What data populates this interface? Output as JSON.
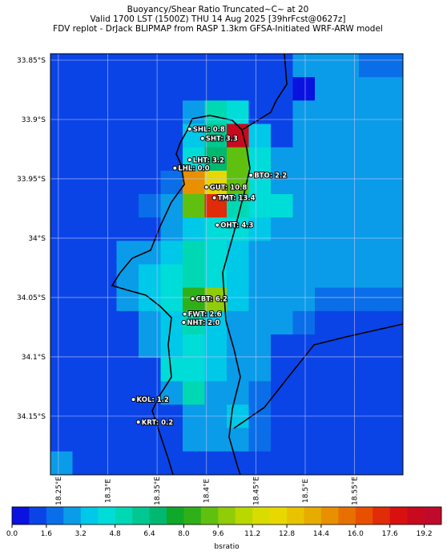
{
  "chart_data": {
    "type": "heatmap",
    "title_lines": [
      "Buoyancy/Shear Ratio Truncated~C~    at 20",
      "Valid 1700 LST (1500Z) THU 14 Aug 2025 [39hrFcst@0627z]",
      "FDV replot - DrJack BLIPMAP from RASP 1.3km GFSA-Initiated WRF-ARW model"
    ],
    "lon_lim": [
      18.242,
      18.599
    ],
    "lat_lim": [
      33.8446,
      34.1994
    ],
    "lat_ticks": [
      {
        "value": 33.85,
        "label": "33.85°S"
      },
      {
        "value": 33.9,
        "label": "33.9°S"
      },
      {
        "value": 33.95,
        "label": "33.95°S"
      },
      {
        "value": 34,
        "label": "34°S"
      },
      {
        "value": 34.05,
        "label": "34.05°S"
      },
      {
        "value": 34.1,
        "label": "34.1°S"
      },
      {
        "value": 34.15,
        "label": "34.15°S"
      }
    ],
    "lon_ticks": [
      {
        "value": 18.25,
        "label": "18.25°E"
      },
      {
        "value": 18.3,
        "label": "18.3°E"
      },
      {
        "value": 18.35,
        "label": "18.35°E"
      },
      {
        "value": 18.4,
        "label": "18.4°E"
      },
      {
        "value": 18.45,
        "label": "18.45°E"
      },
      {
        "value": 18.5,
        "label": "18.5°E"
      },
      {
        "value": 18.55,
        "label": "18.55°E"
      }
    ],
    "grid_values": [
      [
        1.2,
        1.2,
        1.2,
        1.2,
        1.2,
        1.2,
        1.2,
        1.2,
        1.2,
        1.2,
        1.2,
        2.4,
        2.4,
        2.4,
        2.0,
        2.0
      ],
      [
        1.2,
        1.2,
        1.2,
        1.2,
        1.2,
        1.2,
        1.2,
        1.2,
        1.2,
        1.2,
        1.2,
        0.6,
        2.4,
        2.4,
        2.4,
        2.4
      ],
      [
        1.2,
        1.2,
        1.2,
        1.2,
        1.2,
        1.2,
        2.8,
        5.0,
        4.0,
        1.2,
        1.2,
        2.4,
        2.4,
        2.4,
        2.4,
        2.4
      ],
      [
        1.2,
        1.2,
        1.2,
        1.2,
        1.2,
        1.2,
        3.2,
        6.0,
        19.0,
        3.6,
        1.2,
        2.4,
        2.4,
        2.4,
        2.4,
        2.4
      ],
      [
        1.2,
        1.2,
        1.2,
        1.2,
        1.2,
        1.2,
        4.0,
        6.4,
        8.8,
        4.0,
        2.4,
        2.4,
        2.4,
        2.4,
        2.4,
        2.4
      ],
      [
        1.2,
        1.2,
        1.2,
        1.2,
        1.2,
        1.6,
        14.5,
        12.0,
        9.0,
        4.0,
        2.4,
        2.4,
        2.4,
        2.4,
        2.4,
        2.4
      ],
      [
        1.2,
        1.2,
        1.2,
        1.2,
        1.6,
        2.4,
        9.0,
        17.0,
        4.8,
        4.0,
        4.0,
        2.4,
        2.4,
        2.4,
        2.4,
        2.4
      ],
      [
        1.2,
        1.2,
        1.2,
        1.2,
        1.2,
        2.4,
        3.6,
        4.0,
        4.0,
        3.2,
        2.4,
        2.4,
        2.4,
        2.4,
        2.4,
        2.4
      ],
      [
        1.2,
        1.2,
        1.2,
        2.4,
        2.4,
        3.2,
        4.8,
        4.0,
        3.2,
        2.4,
        2.4,
        2.4,
        2.4,
        2.4,
        2.4,
        2.4
      ],
      [
        1.2,
        1.2,
        1.2,
        2.4,
        3.2,
        4.0,
        4.8,
        4.0,
        3.2,
        2.4,
        2.4,
        2.4,
        2.4,
        2.4,
        2.4,
        2.4
      ],
      [
        1.2,
        1.2,
        1.2,
        2.4,
        3.2,
        4.0,
        8.4,
        9.6,
        3.2,
        2.4,
        2.4,
        2.4,
        1.6,
        1.6,
        1.6,
        1.6
      ],
      [
        1.2,
        1.2,
        1.2,
        1.2,
        2.4,
        3.2,
        4.8,
        3.2,
        2.4,
        2.4,
        2.4,
        1.6,
        1.2,
        1.2,
        1.2,
        1.2
      ],
      [
        1.2,
        1.2,
        1.2,
        1.2,
        2.4,
        3.6,
        4.0,
        3.2,
        2.4,
        2.4,
        1.2,
        1.2,
        1.2,
        1.2,
        1.2,
        1.2
      ],
      [
        1.2,
        1.2,
        1.2,
        1.2,
        1.2,
        4.4,
        4.4,
        3.6,
        2.4,
        2.4,
        1.2,
        1.2,
        1.2,
        1.2,
        1.2,
        1.2
      ],
      [
        1.2,
        1.2,
        1.2,
        1.2,
        1.2,
        2.4,
        5.6,
        2.4,
        2.4,
        2.0,
        1.2,
        1.2,
        1.2,
        1.2,
        1.2,
        1.2
      ],
      [
        1.2,
        1.2,
        1.2,
        1.2,
        1.2,
        1.2,
        2.4,
        2.4,
        3.2,
        2.0,
        1.2,
        1.2,
        1.2,
        1.2,
        1.2,
        1.2
      ],
      [
        1.2,
        1.2,
        1.2,
        1.2,
        1.2,
        1.2,
        2.4,
        2.4,
        2.4,
        1.6,
        1.2,
        1.2,
        1.2,
        1.2,
        1.2,
        1.2
      ],
      [
        2.4,
        1.2,
        1.2,
        1.2,
        1.2,
        1.2,
        1.2,
        1.2,
        1.2,
        1.2,
        1.2,
        1.2,
        1.2,
        1.2,
        1.2,
        1.2
      ]
    ],
    "colorbar": {
      "label": "bsratio",
      "clim": [
        0,
        20
      ],
      "colors": [
        "#0a12e0",
        "#0a44e6",
        "#0a6ee8",
        "#0a9ce8",
        "#00c8e8",
        "#00dcd8",
        "#00d8b4",
        "#00c890",
        "#00b870",
        "#10a828",
        "#30b018",
        "#60c010",
        "#90cc08",
        "#b8d800",
        "#d8dc00",
        "#e8d800",
        "#e8c400",
        "#e8ac00",
        "#e89000",
        "#e87000",
        "#e85000",
        "#e02c08",
        "#d81010",
        "#c80a1e",
        "#c00a2c"
      ],
      "ticks": [
        {
          "value": 0,
          "label": "0.0"
        },
        1.6,
        3.2,
        4.8,
        6.4,
        {
          "value": 8,
          "label": "8.0"
        },
        9.6,
        11.2,
        12.8,
        14.4,
        {
          "value": 16,
          "label": "16.0"
        },
        17.6,
        19.2
      ]
    },
    "stations": [
      {
        "label": "SHL: 0.8",
        "lon": 18.383,
        "lat": 33.908
      },
      {
        "label": "SHT: 3.3",
        "lon": 18.396,
        "lat": 33.916
      },
      {
        "label": "LHT: 3.2",
        "lon": 18.383,
        "lat": 33.934
      },
      {
        "label": "LHL: 0.0",
        "lon": 18.368,
        "lat": 33.941
      },
      {
        "label": "BTO: 2.2",
        "lon": 18.445,
        "lat": 33.947
      },
      {
        "label": "GUT: 10.8",
        "lon": 18.4,
        "lat": 33.957
      },
      {
        "label": "TMT: 13.4",
        "lon": 18.408,
        "lat": 33.966
      },
      {
        "label": "OHT: 4.3",
        "lon": 18.411,
        "lat": 33.989
      },
      {
        "label": "CBT: 6.2",
        "lon": 18.386,
        "lat": 34.051
      },
      {
        "label": "FWT: 2.6",
        "lon": 18.378,
        "lat": 34.064
      },
      {
        "label": "NHT: 2.0",
        "lon": 18.377,
        "lat": 34.071
      },
      {
        "label": "KOL: 1.2",
        "lon": 18.326,
        "lat": 34.136
      },
      {
        "label": "KRT: 0.2",
        "lon": 18.331,
        "lat": 34.155
      }
    ]
  }
}
